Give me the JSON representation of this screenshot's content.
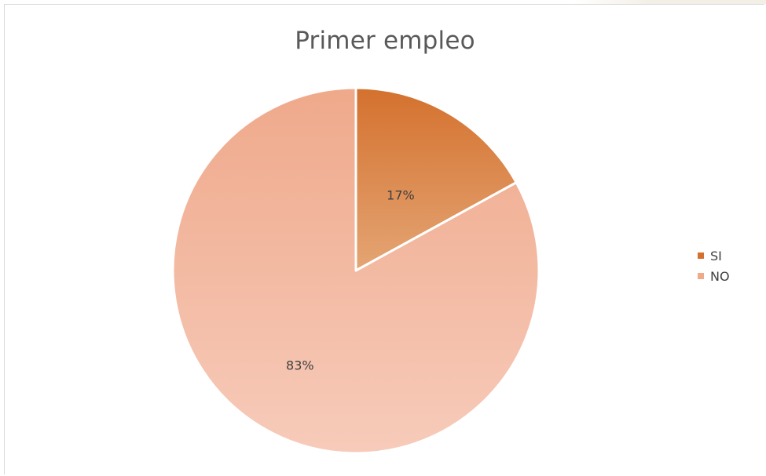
{
  "colors": {
    "si": "#d4712e",
    "si_light": "#e4a574",
    "no": "#efa98b",
    "no_light": "#f7cbba",
    "divider": "#ffffff"
  },
  "chart_data": {
    "type": "pie",
    "title": "Primer empleo",
    "categories": [
      "SI",
      "NO"
    ],
    "values": [
      17,
      83
    ],
    "labels": [
      "17%",
      "83%"
    ],
    "legend_position": "right",
    "start_angle": "12 o'clock, clockwise"
  }
}
